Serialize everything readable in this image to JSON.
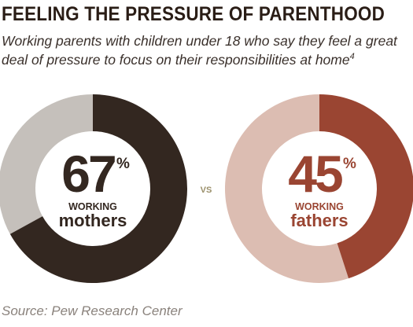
{
  "header": {
    "title": "FEELING THE PRESSURE OF PARENTHOOD",
    "subtitle": "Working parents with children under 18 who say they feel a great deal of pressure to focus on their responsibilities at home",
    "footnote_marker": "4"
  },
  "chart_data": {
    "type": "pie",
    "subtype": "donut",
    "separator": "VS",
    "charts": [
      {
        "value": 67,
        "value_label": "67",
        "unit": "%",
        "label_top": "WORKING",
        "label_bottom": "mothers",
        "color_value": "#332720",
        "color_rest": "#c5c0bb"
      },
      {
        "value": 45,
        "value_label": "45",
        "unit": "%",
        "label_top": "WORKING",
        "label_bottom": "fathers",
        "color_value": "#9a4532",
        "color_rest": "#dcbdb2"
      }
    ]
  },
  "footer": {
    "source": "Source: Pew Research Center"
  }
}
